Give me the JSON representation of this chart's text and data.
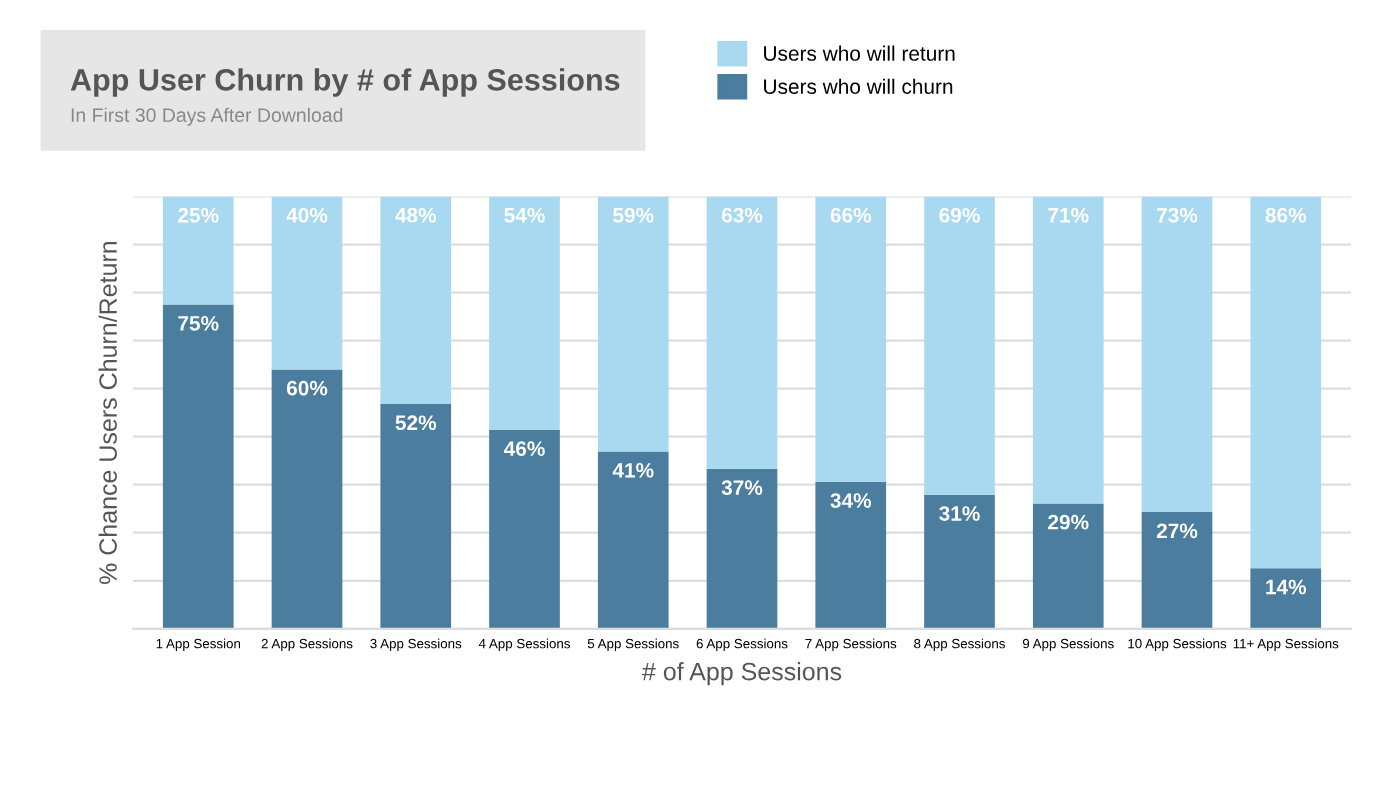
{
  "chart_data": {
    "type": "bar",
    "title": "App User Churn by # of App Sessions",
    "subtitle": "In First 30 Days After Download",
    "xlabel": "# of App Sessions",
    "ylabel": "% Chance Users Churn/Return",
    "categories": [
      "1 App Session",
      "2 App Sessions",
      "3 App Sessions",
      "4 App Sessions",
      "5 App Sessions",
      "6 App Sessions",
      "7 App Sessions",
      "8 App Sessions",
      "9 App Sessions",
      "10 App Sessions",
      "11+ App Sessions"
    ],
    "stacked": true,
    "legend": "top right",
    "grid": "y",
    "tick_labels": "x",
    "series": [
      {
        "name": "Users who will churn",
        "color": "#4a7d9e",
        "values": [
          75,
          60,
          52,
          46,
          41,
          37,
          34,
          31,
          29,
          27,
          14
        ],
        "value_labels": [
          "75%",
          "60%",
          "52%",
          "46%",
          "41%",
          "37%",
          "34%",
          "31%",
          "29%",
          "27%",
          "14%"
        ]
      },
      {
        "name": "Users who will return",
        "color": "#a9d9f0",
        "values": [
          25,
          40,
          48,
          54,
          59,
          63,
          66,
          69,
          71,
          73,
          86
        ],
        "value_labels": [
          "25%",
          "40%",
          "48%",
          "54%",
          "59%",
          "63%",
          "66%",
          "69%",
          "71%",
          "73%",
          "86%"
        ]
      }
    ]
  }
}
